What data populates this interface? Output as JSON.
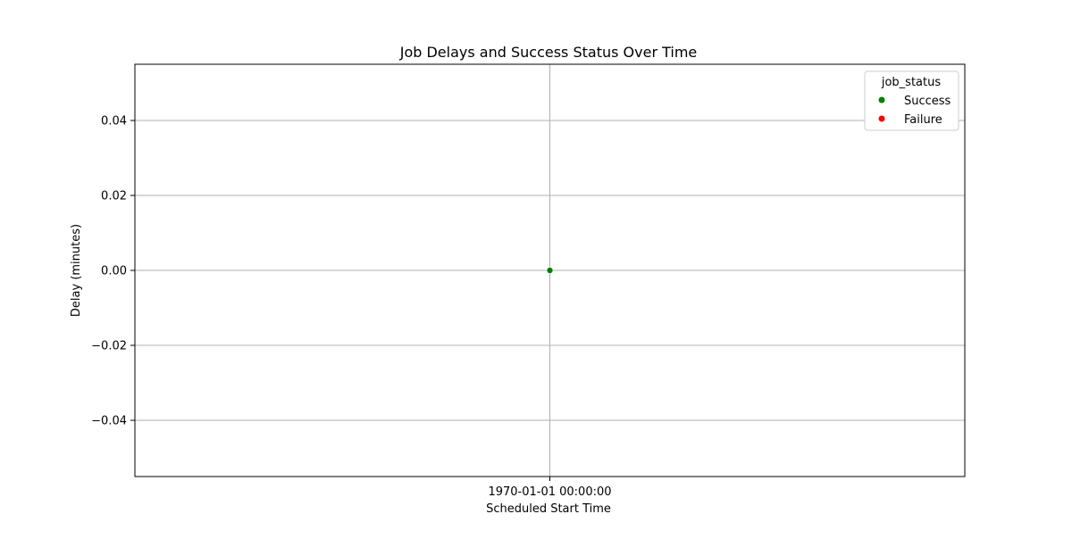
{
  "chart_data": {
    "type": "scatter",
    "title": "Job Delays and Success Status Over Time",
    "xlabel": "Scheduled Start Time",
    "ylabel": "Delay (minutes)",
    "x_ticks": [
      "1970-01-01 00:00:00"
    ],
    "y_ticks": [
      "0.04",
      "0.02",
      "0.00",
      "−0.02",
      "−0.04"
    ],
    "y_tick_values": [
      0.04,
      0.02,
      0.0,
      -0.02,
      -0.04
    ],
    "ylim": [
      -0.055,
      0.055
    ],
    "grid": true,
    "legend": {
      "title": "job_status",
      "placement": "top-right",
      "entries": [
        {
          "name": "Success",
          "color": "#008000"
        },
        {
          "name": "Failure",
          "color": "#ff0000"
        }
      ]
    },
    "series": [
      {
        "name": "Success",
        "color": "#008000",
        "points": [
          {
            "x": "1970-01-01 00:00:00",
            "y": 0.0
          }
        ]
      },
      {
        "name": "Failure",
        "color": "#ff0000",
        "points": []
      }
    ]
  }
}
